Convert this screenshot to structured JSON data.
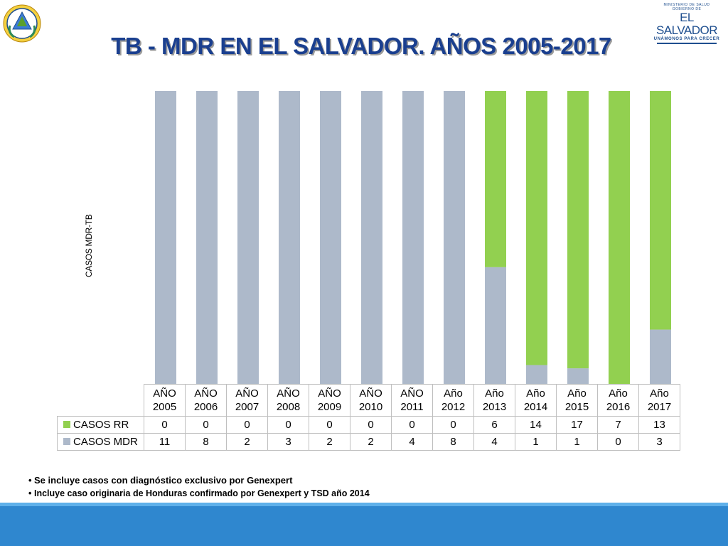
{
  "header": {
    "title": "TB - MDR EN EL SALVADOR.  AÑOS 2005-2017",
    "logo_line1": "MINISTERIO DE SALUD",
    "logo_line2": "GOBIERNO DE",
    "logo_name": "EL SALVADOR",
    "logo_slogan": "UNÁMONOS PARA CRECER"
  },
  "colors": {
    "rr": "#92d050",
    "mdr": "#adb9ca",
    "title": "#1a3f8f",
    "footer": "#2f87cf"
  },
  "chart_data": {
    "type": "bar",
    "stacked": true,
    "normalized": true,
    "ylabel": "CASOS MDR-TB",
    "categories": [
      [
        "AÑO",
        "2005"
      ],
      [
        "AÑO",
        "2006"
      ],
      [
        "AÑO",
        "2007"
      ],
      [
        "AÑO",
        "2008"
      ],
      [
        "AÑO",
        "2009"
      ],
      [
        "AÑO",
        "2010"
      ],
      [
        "AÑO",
        "2011"
      ],
      [
        "Año",
        "2012"
      ],
      [
        "Año",
        "2013"
      ],
      [
        "Año",
        "2014"
      ],
      [
        "Año",
        "2015"
      ],
      [
        "Año",
        "2016"
      ],
      [
        "Año",
        "2017"
      ]
    ],
    "series": [
      {
        "name": "CASOS RR",
        "values": [
          0,
          0,
          0,
          0,
          0,
          0,
          0,
          0,
          6,
          14,
          17,
          7,
          13
        ]
      },
      {
        "name": "CASOS MDR",
        "values": [
          11,
          8,
          2,
          3,
          2,
          2,
          4,
          8,
          4,
          1,
          1,
          0,
          3
        ]
      }
    ],
    "legend_placement": "data-table"
  },
  "notes": [
    "Se incluye casos con diagnóstico exclusivo por Genexpert",
    "Incluye caso originaria de Honduras confirmado por Genexpert y TSD año 2014"
  ]
}
